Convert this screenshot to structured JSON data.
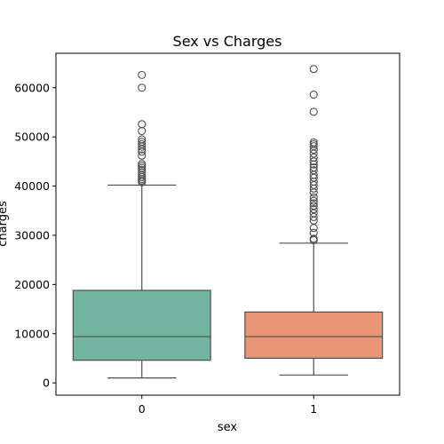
{
  "chart_data": {
    "type": "box",
    "title": "Sex vs Charges",
    "xlabel": "sex",
    "ylabel": "charges",
    "categories": [
      "0",
      "1"
    ],
    "ylim": [
      -2500,
      67000
    ],
    "yticks": [
      0,
      10000,
      20000,
      30000,
      40000,
      50000,
      60000
    ],
    "ytick_labels": [
      "0",
      "10000",
      "20000",
      "30000",
      "40000",
      "50000",
      "60000"
    ],
    "colors": [
      "#72b6a1",
      "#e99675"
    ],
    "boxes": [
      {
        "category": "0",
        "whisker_low": 1000,
        "q1": 4600,
        "median": 9400,
        "q3": 18800,
        "whisker_high": 40200,
        "outliers": [
          40800,
          41100,
          41400,
          41800,
          42200,
          42800,
          43300,
          43700,
          44100,
          44500,
          46200,
          47000,
          47500,
          48000,
          48500,
          49000,
          49500,
          51200,
          52600,
          60000,
          62600
        ]
      },
      {
        "category": "1",
        "whisker_low": 1600,
        "q1": 5000,
        "median": 9400,
        "q3": 14400,
        "whisker_high": 28400,
        "outliers": [
          29000,
          29300,
          30500,
          31500,
          33000,
          33700,
          34500,
          35300,
          36000,
          36500,
          37000,
          37700,
          38700,
          39500,
          40200,
          40900,
          41700,
          42300,
          43200,
          43800,
          44400,
          45000,
          45800,
          46600,
          47400,
          48100,
          48500,
          48900,
          55100,
          58600,
          63800
        ]
      }
    ]
  }
}
